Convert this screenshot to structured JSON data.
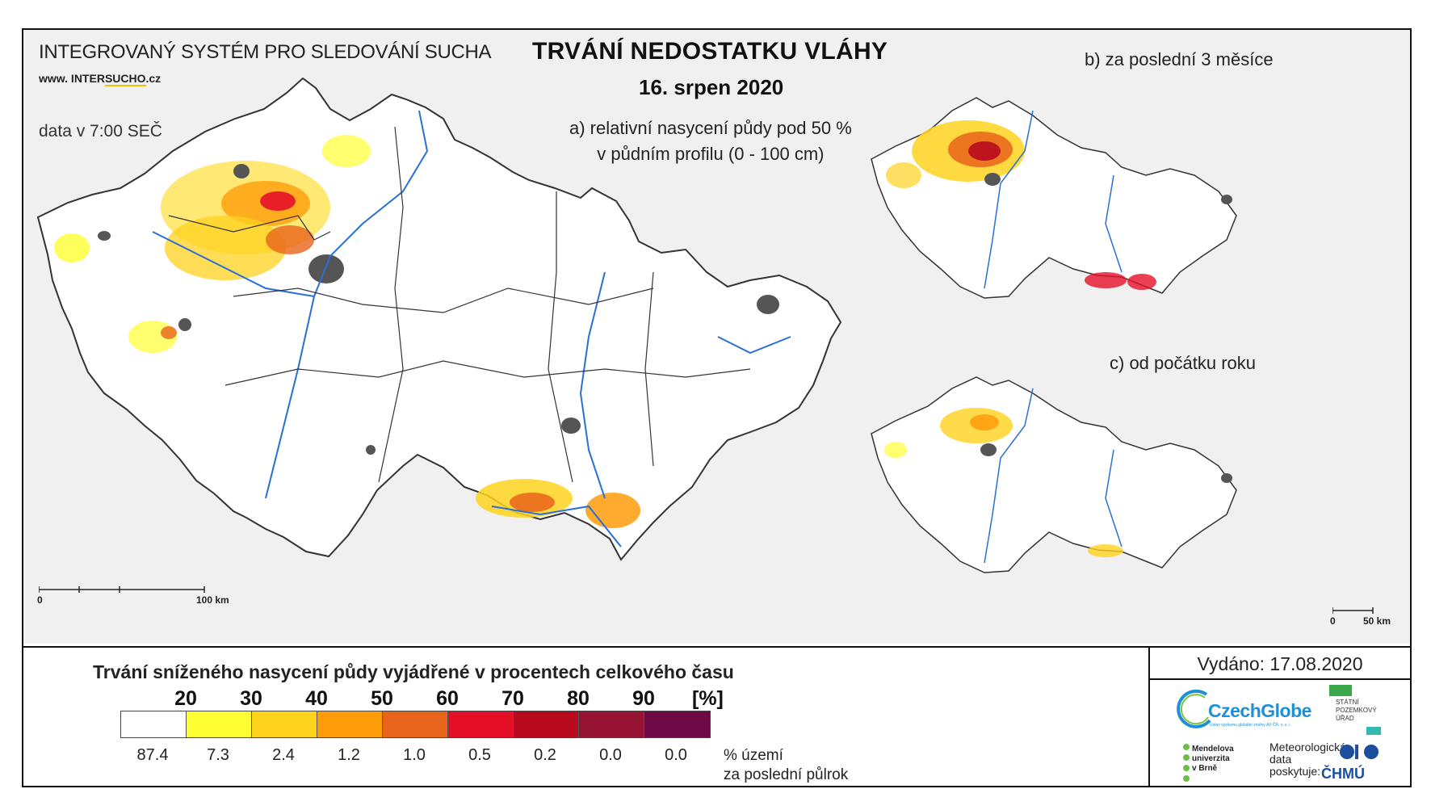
{
  "header": {
    "system_name": "INTEGROVANÝ SYSTÉM PRO SLEDOVÁNÍ SUCHA",
    "website_prefix": "www. INTER",
    "website_highlight": "SUCHO",
    "website_suffix": ".cz",
    "data_time": "data v 7:00 SEČ",
    "title": "TRVÁNÍ NEDOSTATKU VLÁHY",
    "date": "16. srpen 2020"
  },
  "maps": {
    "a": {
      "label_line1": "a) relativní nasycení půdy pod 50 %",
      "label_line2": "v půdním profilu (0 - 100 cm)"
    },
    "b": {
      "label": "b) za poslední 3 měsíce"
    },
    "c": {
      "label": "c) od počátku roku"
    }
  },
  "scalebars": {
    "main": {
      "start": "0",
      "end": "100 km"
    },
    "small": {
      "start": "0",
      "end": "50 km"
    }
  },
  "legend": {
    "title": "Trvání sníženého nasycení půdy vyjádřené v procentech celkového času",
    "ticks": [
      "20",
      "30",
      "40",
      "50",
      "60",
      "70",
      "80",
      "90"
    ],
    "unit": "[%]",
    "colors": [
      "#ffffff",
      "#ffff33",
      "#ffd21e",
      "#ff9c0a",
      "#e8641a",
      "#e60f28",
      "#b90a1e",
      "#961432",
      "#6e0a46"
    ],
    "percent_territory": [
      "87.4",
      "7.3",
      "2.4",
      "1.2",
      "1.0",
      "0.5",
      "0.2",
      "0.0",
      "0.0"
    ],
    "note_line1": "% území",
    "note_line2": "za poslední půlrok"
  },
  "footer": {
    "issued": "Vydáno: 17.08.2020",
    "czechglobe": "CzechGlobe",
    "czechglobe_sub": "Ústav výzkumu globální změny AV ČR, v. v. i.",
    "spu_line1": "STÁTNÍ",
    "spu_line2": "POZEMKOVÝ",
    "spu_line3": "ÚŘAD",
    "mendel_line1": "Mendelova",
    "mendel_line2": "univerzita",
    "mendel_line3": "v Brně",
    "meteo_line1": "Meteorologická",
    "meteo_line2": "data",
    "meteo_line3": "poskytuje:",
    "chmu": "ČHMÚ"
  }
}
